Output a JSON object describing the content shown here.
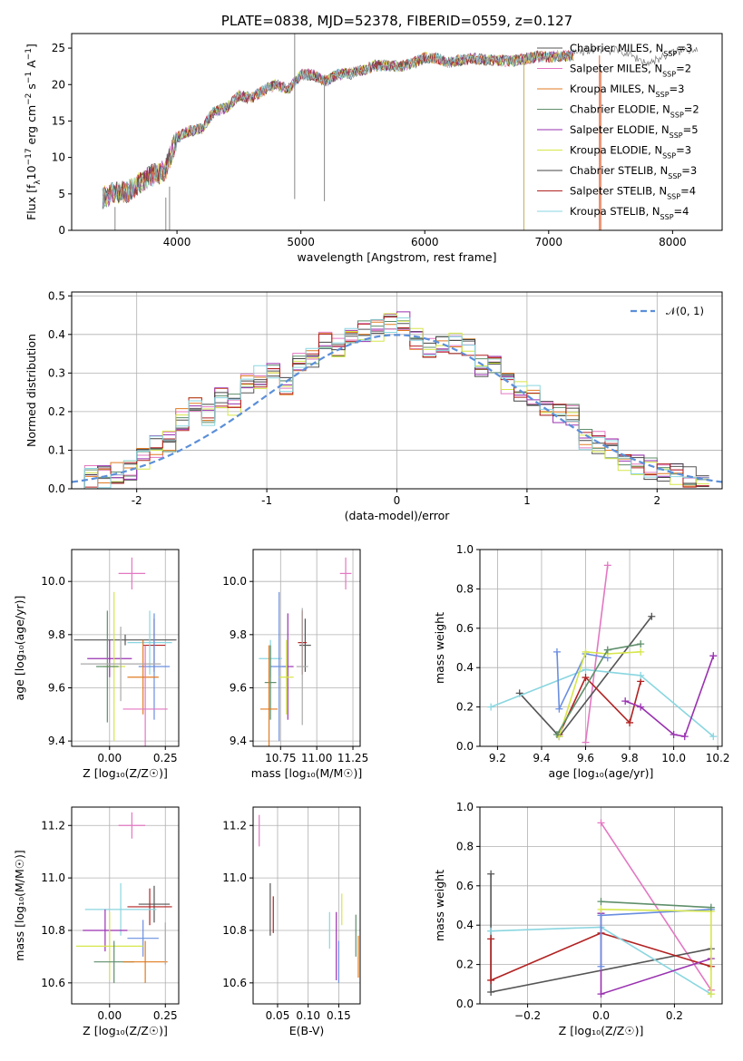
{
  "chart_data": [
    {
      "type": "line",
      "title": "PLATE=0838, MJD=52378, FIBERID=0559, z=0.127",
      "xlabel": "wavelength [Angstrom, rest frame]",
      "ylabel": "Flux [f_λ 10^-17 erg cm^-2 s^-1 A^-1]",
      "xlim": [
        3150,
        8400
      ],
      "ylim": [
        0,
        27
      ],
      "xticks": [
        4000,
        5000,
        6000,
        7000,
        8000
      ],
      "yticks": [
        0,
        5,
        10,
        15,
        20,
        25
      ],
      "spectrum_x": [
        3400,
        3500,
        3600,
        3700,
        3800,
        3900,
        4000,
        4100,
        4200,
        4300,
        4400,
        4500,
        4600,
        4700,
        4800,
        4900,
        5000,
        5100,
        5200,
        5300,
        5400,
        5500,
        5600,
        5700,
        5800,
        5900,
        6000,
        6100,
        6200,
        6300,
        6400,
        6500,
        6600,
        6700,
        6800,
        6900,
        7000,
        7100,
        7200
      ],
      "spectrum_y": [
        4.5,
        5.2,
        5.3,
        6.5,
        7.6,
        8.1,
        12.7,
        13.6,
        14.0,
        16.3,
        16.8,
        18.5,
        18.1,
        19.2,
        20.0,
        19.3,
        21.4,
        21.3,
        20.5,
        21.4,
        21.5,
        22.0,
        22.6,
        22.6,
        22.5,
        22.9,
        23.7,
        23.6,
        23.0,
        23.4,
        23.6,
        23.4,
        23.3,
        23.2,
        23.5,
        23.8,
        23.8,
        23.9,
        24.0
      ],
      "grey_extension_x": [
        7200,
        7400,
        7600,
        7800,
        8000,
        8200
      ],
      "grey_extension_y": [
        24.3,
        24.9,
        24.5,
        22.9,
        24.4,
        25.0
      ],
      "legend_position": "upper right",
      "grid": false
    },
    {
      "type": "bar",
      "xlabel": "(data-model)/error",
      "ylabel": "Normed distribution",
      "xlim": [
        -2.5,
        2.5
      ],
      "ylim": [
        0,
        0.51
      ],
      "xticks": [
        -2,
        -1,
        0,
        1,
        2
      ],
      "yticks": [
        0.0,
        0.1,
        0.2,
        0.3,
        0.4,
        0.5
      ],
      "bin_centers": [
        -2.35,
        -2.25,
        -2.15,
        -2.05,
        -1.95,
        -1.85,
        -1.75,
        -1.65,
        -1.55,
        -1.45,
        -1.35,
        -1.25,
        -1.15,
        -1.05,
        -0.95,
        -0.85,
        -0.75,
        -0.65,
        -0.55,
        -0.45,
        -0.35,
        -0.25,
        -0.15,
        -0.05,
        0.05,
        0.15,
        0.25,
        0.35,
        0.45,
        0.55,
        0.65,
        0.75,
        0.85,
        0.95,
        1.05,
        1.15,
        1.25,
        1.35,
        1.45,
        1.55,
        1.65,
        1.75,
        1.85,
        1.95,
        2.05,
        2.15,
        2.25,
        2.35
      ],
      "hist_values": [
        0.03,
        0.03,
        0.04,
        0.05,
        0.08,
        0.11,
        0.12,
        0.18,
        0.21,
        0.19,
        0.24,
        0.22,
        0.27,
        0.29,
        0.3,
        0.26,
        0.33,
        0.34,
        0.38,
        0.36,
        0.39,
        0.41,
        0.41,
        0.43,
        0.44,
        0.39,
        0.37,
        0.38,
        0.38,
        0.37,
        0.32,
        0.33,
        0.27,
        0.25,
        0.24,
        0.22,
        0.19,
        0.19,
        0.13,
        0.12,
        0.1,
        0.07,
        0.06,
        0.05,
        0.04,
        0.04,
        0.03,
        0.02
      ],
      "normal_curve": {
        "name": "𝒩(0, 1)",
        "mean": 0,
        "sigma": 1
      },
      "legend_position": "upper right",
      "grid": true
    },
    {
      "type": "scatter",
      "xlabel": "Z [log₁₀(Z/Z☉)]",
      "ylabel": "age  [log₁₀(age/yr)]",
      "xlim": [
        -0.17,
        0.31
      ],
      "ylim": [
        9.38,
        10.12
      ],
      "xticks": [
        0.0,
        0.25
      ],
      "xtick_labels": [
        "0.00",
        "0.25"
      ],
      "yticks": [
        9.4,
        9.6,
        9.8,
        10.0
      ],
      "ytick_labels": [
        "9.4",
        "9.6",
        "9.8",
        "10.0"
      ],
      "points": [
        {
          "x": 0.1,
          "xerr": 0.06,
          "y": 10.03,
          "yerr": 0.06
        },
        {
          "x": 0.07,
          "xerr": 0.23,
          "y": 9.78,
          "yerr": 0.02
        },
        {
          "x": 0.2,
          "xerr": 0.05,
          "y": 9.76,
          "yerr": 0.1
        },
        {
          "x": 0.18,
          "xerr": 0.1,
          "y": 9.77,
          "yerr": 0.12
        },
        {
          "x": 0.0,
          "xerr": 0.1,
          "y": 9.71,
          "yerr": 0.07
        },
        {
          "x": 0.2,
          "xerr": 0.07,
          "y": 9.68,
          "yerr": 0.2
        },
        {
          "x": 0.02,
          "xerr": 0.05,
          "y": 9.68,
          "yerr": 0.28
        },
        {
          "x": -0.01,
          "xerr": 0.05,
          "y": 9.68,
          "yerr": 0.21
        },
        {
          "x": 0.15,
          "xerr": 0.07,
          "y": 9.64,
          "yerr": 0.14
        },
        {
          "x": 0.05,
          "xerr": 0.18,
          "y": 9.69,
          "yerr": 0.14
        },
        {
          "x": 0.16,
          "xerr": 0.1,
          "y": 9.52,
          "yerr": 0.24
        }
      ],
      "grid": true
    },
    {
      "type": "scatter",
      "xlabel": "mass [log₁₀(M/M☉)]",
      "xlim": [
        10.56,
        11.3
      ],
      "ylim": [
        9.38,
        10.12
      ],
      "xticks": [
        10.75,
        11.0,
        11.25
      ],
      "xtick_labels": [
        "10.75",
        "11.00",
        "11.25"
      ],
      "yticks": [
        9.4,
        9.6,
        9.8,
        10.0
      ],
      "ytick_labels": [
        "9.4",
        "9.6",
        "9.8",
        "10.0"
      ],
      "points": [
        {
          "x": 11.2,
          "xerr": 0.04,
          "y": 10.03,
          "yerr": 0.06
        },
        {
          "x": 10.92,
          "xerr": 0.04,
          "y": 9.76,
          "yerr": 0.1
        },
        {
          "x": 10.9,
          "xerr": 0.03,
          "y": 9.77,
          "yerr": 0.12
        },
        {
          "x": 10.68,
          "xerr": 0.08,
          "y": 9.71,
          "yerr": 0.07
        },
        {
          "x": 10.8,
          "xerr": 0.04,
          "y": 9.68,
          "yerr": 0.2
        },
        {
          "x": 10.74,
          "xerr": 0.06,
          "y": 9.68,
          "yerr": 0.28
        },
        {
          "x": 10.79,
          "xerr": 0.05,
          "y": 9.64,
          "yerr": 0.14
        },
        {
          "x": 10.68,
          "xerr": 0.04,
          "y": 9.62,
          "yerr": 0.14
        },
        {
          "x": 10.67,
          "xerr": 0.06,
          "y": 9.52,
          "yerr": 0.24
        },
        {
          "x": 10.9,
          "xerr": 0.04,
          "y": 9.68,
          "yerr": 0.22
        }
      ],
      "grid": true
    },
    {
      "type": "line",
      "xlabel": "age  [log₁₀(age/yr)]",
      "ylabel": "mass weight",
      "xlim": [
        9.12,
        10.22
      ],
      "ylim": [
        0,
        1
      ],
      "xticks": [
        9.2,
        9.4,
        9.6,
        9.8,
        10.0,
        10.2
      ],
      "xtick_labels": [
        "9.2",
        "9.4",
        "9.6",
        "9.8",
        "10.0",
        "10.2"
      ],
      "yticks": [
        0.0,
        0.2,
        0.4,
        0.6,
        0.8,
        1.0
      ],
      "series": [
        {
          "x": [
            9.6,
            9.7
          ],
          "y": [
            0.02,
            0.92
          ]
        },
        {
          "x": [
            9.3,
            9.48,
            9.9
          ],
          "y": [
            0.27,
            0.05,
            0.66
          ]
        },
        {
          "x": [
            9.48,
            9.6,
            9.8,
            9.85
          ],
          "y": [
            0.06,
            0.35,
            0.12,
            0.33
          ]
        },
        {
          "x": [
            9.17,
            9.6,
            9.85,
            10.18
          ],
          "y": [
            0.2,
            0.39,
            0.36,
            0.05
          ]
        },
        {
          "x": [
            9.78,
            9.85,
            10.0,
            10.05,
            10.18
          ],
          "y": [
            0.23,
            0.2,
            0.06,
            0.05,
            0.46
          ]
        },
        {
          "x": [
            9.47,
            9.48,
            9.6,
            9.7
          ],
          "y": [
            0.48,
            0.19,
            0.47,
            0.45
          ]
        },
        {
          "x": [
            9.48,
            9.6,
            9.7,
            9.85
          ],
          "y": [
            0.05,
            0.48,
            0.47,
            0.48
          ]
        },
        {
          "x": [
            9.47,
            9.7,
            9.85
          ],
          "y": [
            0.06,
            0.49,
            0.52
          ]
        }
      ],
      "grid": true
    },
    {
      "type": "scatter",
      "xlabel": "Z [log₁₀(Z/Z☉)]",
      "ylabel": "mass [log₁₀(M/M☉)]",
      "xlim": [
        -0.17,
        0.31
      ],
      "ylim": [
        10.52,
        11.27
      ],
      "xticks": [
        0.0,
        0.25
      ],
      "xtick_labels": [
        "0.00",
        "0.25"
      ],
      "yticks": [
        10.6,
        10.8,
        11.0,
        11.2
      ],
      "ytick_labels": [
        "10.6",
        "10.8",
        "11.0",
        "11.2"
      ],
      "points": [
        {
          "x": 0.1,
          "xerr": 0.06,
          "y": 11.2,
          "yerr": 0.05
        },
        {
          "x": 0.2,
          "xerr": 0.07,
          "y": 10.9,
          "yerr": 0.07
        },
        {
          "x": 0.18,
          "xerr": 0.1,
          "y": 10.89,
          "yerr": 0.07
        },
        {
          "x": 0.05,
          "xerr": 0.16,
          "y": 10.88,
          "yerr": 0.1
        },
        {
          "x": -0.02,
          "xerr": 0.1,
          "y": 10.8,
          "yerr": 0.08
        },
        {
          "x": 0.15,
          "xerr": 0.07,
          "y": 10.77,
          "yerr": 0.07
        },
        {
          "x": 0.0,
          "xerr": 0.15,
          "y": 10.74,
          "yerr": 0.13
        },
        {
          "x": 0.02,
          "xerr": 0.09,
          "y": 10.68,
          "yerr": 0.08
        },
        {
          "x": 0.16,
          "xerr": 0.1,
          "y": 10.68,
          "yerr": 0.08
        },
        {
          "x": 0.25,
          "xerr": 0.0,
          "y": 10.75,
          "yerr": 0.08
        }
      ],
      "grid": true
    },
    {
      "type": "scatter",
      "xlabel": "E(B-V)",
      "xlim": [
        0.01,
        0.185
      ],
      "ylim": [
        10.52,
        11.27
      ],
      "xticks": [
        0.05,
        0.1,
        0.15
      ],
      "xtick_labels": [
        "0.05",
        "0.10",
        "0.15"
      ],
      "yticks": [
        10.6,
        10.8,
        11.0,
        11.2
      ],
      "ytick_labels": [
        "10.6",
        "10.8",
        "11.0",
        "11.2"
      ],
      "points": [
        {
          "x": 0.02,
          "xerr": 0,
          "y": 11.18,
          "yerr": 0.06
        },
        {
          "x": 0.038,
          "xerr": 0,
          "y": 10.88,
          "yerr": 0.1
        },
        {
          "x": 0.043,
          "xerr": 0,
          "y": 10.86,
          "yerr": 0.07
        },
        {
          "x": 0.135,
          "xerr": 0,
          "y": 10.8,
          "yerr": 0.07
        },
        {
          "x": 0.146,
          "xerr": 0,
          "y": 10.74,
          "yerr": 0.13
        },
        {
          "x": 0.15,
          "xerr": 0,
          "y": 10.68,
          "yerr": 0.08
        },
        {
          "x": 0.155,
          "xerr": 0,
          "y": 10.88,
          "yerr": 0.06
        },
        {
          "x": 0.178,
          "xerr": 0,
          "y": 10.78,
          "yerr": 0.08
        },
        {
          "x": 0.182,
          "xerr": 0,
          "y": 10.7,
          "yerr": 0.08
        }
      ],
      "grid": true
    },
    {
      "type": "line",
      "xlabel": "Z [log₁₀(Z/Z☉)]",
      "ylabel": "mass weight",
      "xlim": [
        -0.33,
        0.33
      ],
      "ylim": [
        0,
        1
      ],
      "xticks": [
        -0.2,
        0.0,
        0.2
      ],
      "xtick_labels": [
        "−0.2",
        "0.0",
        "0.2"
      ],
      "yticks": [
        0.0,
        0.2,
        0.4,
        0.6,
        0.8,
        1.0
      ],
      "yticks_labels": [
        "0.0",
        "0.2",
        "0.4",
        "0.6",
        "0.8",
        "1.0"
      ],
      "series": [
        {
          "x": [
            0.0,
            0.3
          ],
          "y": [
            0.92,
            0.07
          ]
        },
        {
          "x": [
            -0.3,
            -0.3,
            0.3
          ],
          "y": [
            0.66,
            0.06,
            0.28
          ]
        },
        {
          "x": [
            -0.3,
            -0.3,
            0.0,
            0.3
          ],
          "y": [
            0.33,
            0.12,
            0.36,
            0.19
          ]
        },
        {
          "x": [
            -0.3,
            0.0,
            0.3
          ],
          "y": [
            0.37,
            0.39,
            0.05
          ]
        },
        {
          "x": [
            0.0,
            0.0,
            0.3
          ],
          "y": [
            0.46,
            0.05,
            0.23
          ]
        },
        {
          "x": [
            0.0,
            0.0,
            0.3
          ],
          "y": [
            0.19,
            0.45,
            0.48
          ]
        },
        {
          "x": [
            0.0,
            0.3,
            0.3
          ],
          "y": [
            0.48,
            0.47,
            0.05
          ]
        },
        {
          "x": [
            0.0,
            0.3
          ],
          "y": [
            0.52,
            0.49
          ]
        }
      ],
      "grid": true
    }
  ],
  "legend": [
    {
      "label": "Chabrier MILES, N",
      "sub": "SSP",
      "suffix": "=3",
      "color": "#555555"
    },
    {
      "label": "Salpeter MILES, N",
      "sub": "SSP",
      "suffix": "=2",
      "color": "#e377c2"
    },
    {
      "label": "Kroupa MILES, N",
      "sub": "SSP",
      "suffix": "=3",
      "color": "#e07b20"
    },
    {
      "label": "Chabrier ELODIE, N",
      "sub": "SSP",
      "suffix": "=2",
      "color": "#5f8f6b"
    },
    {
      "label": "Salpeter ELODIE, N",
      "sub": "SSP",
      "suffix": "=5",
      "color": "#9a32b0"
    },
    {
      "label": "Kroupa ELODIE, N",
      "sub": "SSP",
      "suffix": "=3",
      "color": "#d6e64a"
    },
    {
      "label": "Chabrier STELIB, N",
      "sub": "SSP",
      "suffix": "=3",
      "color": "#444444"
    },
    {
      "label": "Salpeter STELIB, N",
      "sub": "SSP",
      "suffix": "=4",
      "color": "#b22222"
    },
    {
      "label": "Kroupa STELIB, N",
      "sub": "SSP",
      "suffix": "=4",
      "color": "#8ad6e0"
    }
  ],
  "model_colors": [
    "#e377c2",
    "#555555",
    "#b22222",
    "#8ad6e0",
    "#9a32b0",
    "#6a8fe0",
    "#d6e64a",
    "#5f8f6b",
    "#e07b20",
    "#aaaaaa"
  ]
}
